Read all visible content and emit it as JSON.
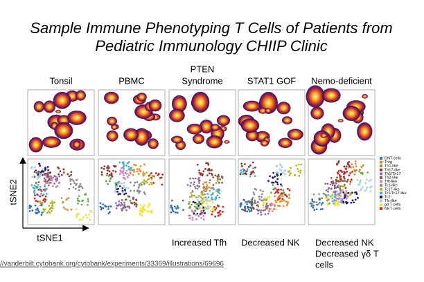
{
  "title": [
    "Sample Immune Phenotyping T Cells of Patients from",
    "Pediatric Immunology CHIIP Clinic"
  ],
  "panels": [
    {
      "title": [
        "Tonsil"
      ],
      "note": []
    },
    {
      "title": [
        "PBMC"
      ],
      "note": []
    },
    {
      "title": [
        "PTEN",
        "Syndrome"
      ],
      "note": [
        "Increased Tfh"
      ]
    },
    {
      "title": [
        "STAT1 GOF"
      ],
      "note": [
        "Decreased NK"
      ]
    },
    {
      "title": [
        "Nemo-deficient"
      ],
      "note": [
        "Decreased NK",
        "Decreased γδ T",
        "cells"
      ]
    }
  ],
  "axes": {
    "x": "tSNE1",
    "y": "tSNE2"
  },
  "legend": [
    {
      "label": "DNT cells",
      "color": "#2e75b6"
    },
    {
      "label": "Treg",
      "color": "#f08a24"
    },
    {
      "label": "Th1-like",
      "color": "#6aa84f"
    },
    {
      "label": "Th17-like",
      "color": "#a0302a"
    },
    {
      "label": "Th1/Th17",
      "color": "#8e6bb0"
    },
    {
      "label": "Th2-like",
      "color": "#8c5a3c"
    },
    {
      "label": "Tfh-like",
      "color": "#e07bc0"
    },
    {
      "label": "Tc1-like",
      "color": "#8c8c8c"
    },
    {
      "label": "Tc17-like",
      "color": "#b5b52a"
    },
    {
      "label": "Tc1/Tc17-like",
      "color": "#4bb0c8"
    },
    {
      "label": "Tc2",
      "color": "#1a1a6e"
    },
    {
      "label": "Tfc-like",
      "color": "#a6cee3"
    },
    {
      "label": "gd T cells",
      "color": "#f5e61b"
    },
    {
      "label": "NKT cells",
      "color": "#e31a1c"
    }
  ],
  "source": "//vanderbilt.cytobank.org/cytobank/experiments/33369/illustrations/69696"
}
